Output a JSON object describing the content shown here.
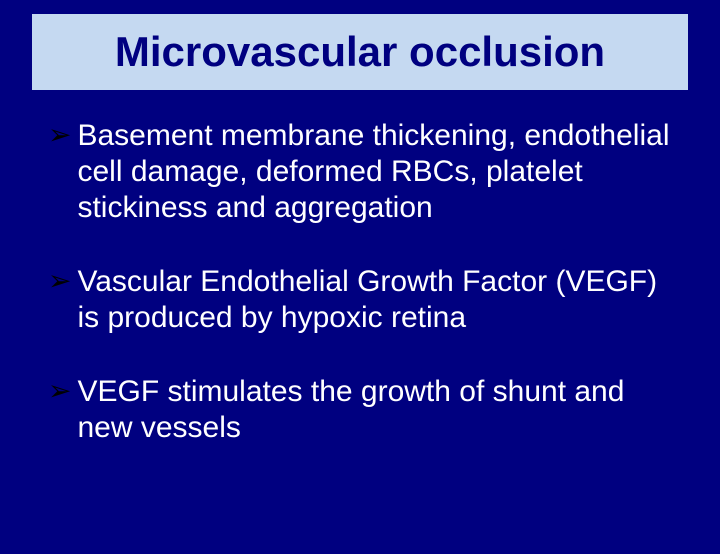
{
  "slide": {
    "title": "Microvascular occlusion",
    "background_color": "#000080",
    "title_box": {
      "background_color": "#c5d9f1",
      "text_color": "#000080",
      "font_size": 42,
      "font_weight": "bold"
    },
    "bullets": [
      {
        "marker": "➢",
        "text": "Basement membrane thickening, endothelial cell damage, deformed RBCs, platelet stickiness and aggregation"
      },
      {
        "marker": "➢",
        "text": "Vascular Endothelial Growth Factor (VEGF) is produced by hypoxic retina"
      },
      {
        "marker": "➢",
        "text": "VEGF stimulates the growth of shunt and new vessels"
      }
    ],
    "bullet_style": {
      "marker_color": "#000000",
      "text_color": "#ffffff",
      "font_size": 30,
      "marker_font_size": 28
    }
  }
}
